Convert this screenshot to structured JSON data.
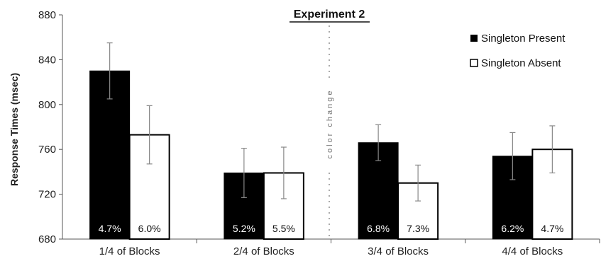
{
  "chart_data": {
    "type": "bar",
    "title": "Experiment 2",
    "xlabel": "",
    "ylabel": "Response Times (msec)",
    "ylim": [
      680,
      880
    ],
    "yticks": [
      "680",
      "720",
      "760",
      "800",
      "840",
      "880"
    ],
    "categories": [
      "1/4 of Blocks",
      "2/4 of Blocks",
      "3/4 of Blocks",
      "4/4 of Blocks"
    ],
    "series": [
      {
        "name": "Singleton Present",
        "color": "#000000",
        "values": [
          830,
          739,
          766,
          754
        ],
        "error": [
          25,
          22,
          16,
          21
        ],
        "error_rate_labels": [
          "4.7%",
          "5.2%",
          "6.8%",
          "6.2%"
        ]
      },
      {
        "name": "Singleton Absent",
        "color": "#ffffff",
        "values": [
          773,
          739,
          730,
          760
        ],
        "error": [
          26,
          23,
          16,
          21
        ],
        "error_rate_labels": [
          "6.0%",
          "5.5%",
          "7.3%",
          "4.7%"
        ]
      }
    ],
    "annotation": "color change",
    "legend_position": "top-right",
    "grid": false
  }
}
